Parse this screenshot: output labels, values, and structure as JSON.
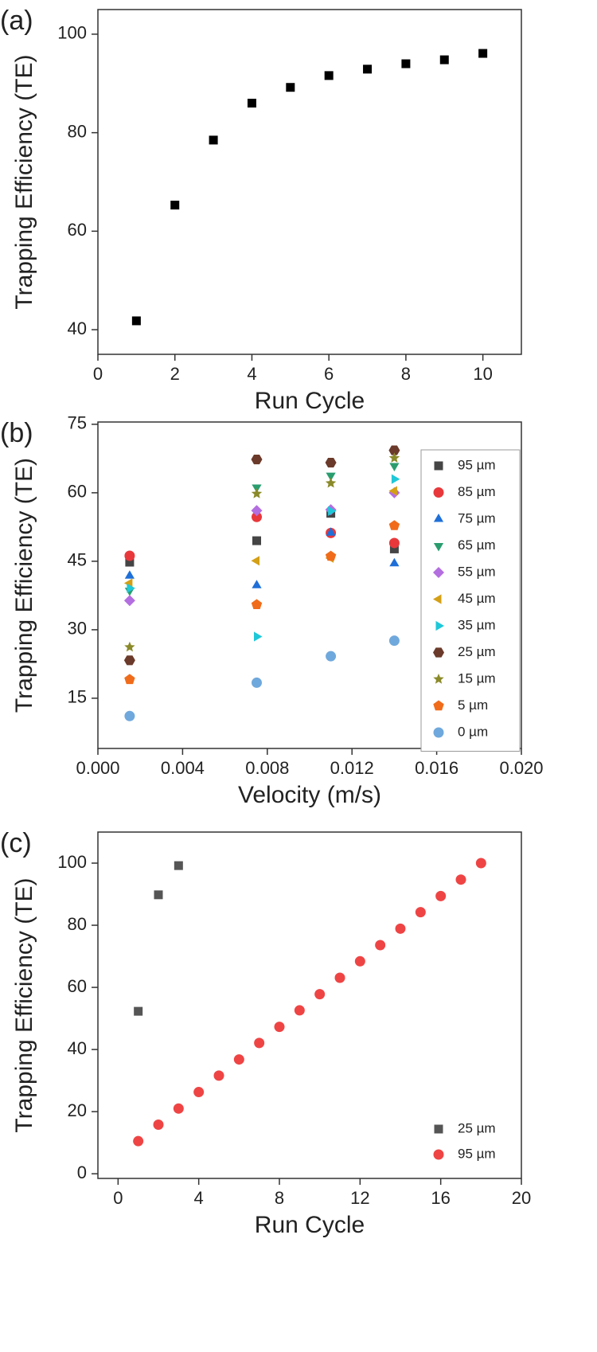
{
  "chart_data": [
    {
      "type": "scatter",
      "panel_label": "(a)",
      "x_label": "Run Cycle",
      "y_label": "Trapping Efficiency (TE)",
      "x": [
        1,
        2,
        3,
        4,
        5,
        6,
        7,
        8,
        9,
        10
      ],
      "values": [
        41.8,
        65.3,
        78.5,
        86,
        89.2,
        91.6,
        92.9,
        94,
        94.8,
        96.1
      ],
      "color": "#000000",
      "marker": "square",
      "xlim": [
        0,
        11
      ],
      "xticks": [
        0,
        2,
        4,
        6,
        8,
        10
      ],
      "ylim": [
        35,
        105
      ],
      "yticks": [
        40,
        60,
        80,
        100
      ]
    },
    {
      "type": "scatter",
      "panel_label": "(b)",
      "x_label": "Velocity (m/s)",
      "y_label": "Trapping Efficiency (TE)",
      "x": [
        0.0015,
        0.0075,
        0.011,
        0.014
      ],
      "series": [
        {
          "name": "95 µm",
          "color": "#454545",
          "marker": "square",
          "values": [
            44.8,
            49.5,
            55.5,
            47.7
          ]
        },
        {
          "name": "85 µm",
          "color": "#e8383b",
          "marker": "circle",
          "values": [
            46.2,
            54.7,
            51.2,
            49
          ]
        },
        {
          "name": "75 µm",
          "color": "#1f6fd8",
          "marker": "triangle-up",
          "values": [
            41.8,
            39.7,
            51.2,
            44.5
          ]
        },
        {
          "name": "65 µm",
          "color": "#2a9d6f",
          "marker": "triangle-down",
          "values": [
            38.6,
            61.2,
            63.8,
            65.9
          ]
        },
        {
          "name": "55 µm",
          "color": "#b36ee0",
          "marker": "diamond",
          "values": [
            36.4,
            56.1,
            56.3,
            60
          ]
        },
        {
          "name": "45 µm",
          "color": "#d4a017",
          "marker": "triangle-left",
          "values": [
            40.2,
            45.1,
            45.7,
            60.4
          ]
        },
        {
          "name": "35 µm",
          "color": "#1ec8d8",
          "marker": "triangle-right",
          "values": [
            39.1,
            28.5,
            56,
            63
          ]
        },
        {
          "name": "25 µm",
          "color": "#6b3a2a",
          "marker": "hexagon",
          "values": [
            23.3,
            67.3,
            66.6,
            69.3
          ]
        },
        {
          "name": "15 µm",
          "color": "#8a8a2a",
          "marker": "star",
          "values": [
            26.2,
            59.8,
            62.1,
            67.6
          ]
        },
        {
          "name": "5  µm",
          "color": "#f06c1a",
          "marker": "pentagon",
          "values": [
            19.1,
            35.5,
            46.1,
            52.8
          ]
        },
        {
          "name": "0  µm",
          "color": "#6fa8dc",
          "marker": "circle",
          "values": [
            11.1,
            18.4,
            24.2,
            27.6
          ]
        }
      ],
      "legend": "right",
      "legend_frame": true,
      "xlim": [
        0,
        0.02
      ],
      "xticks": [
        {
          "value": 0,
          "label": "0.000"
        },
        {
          "value": 0.004,
          "label": "0.004"
        },
        {
          "value": 0.008,
          "label": "0.008"
        },
        {
          "value": 0.012,
          "label": "0.012"
        },
        {
          "value": 0.016,
          "label": "0.016"
        },
        {
          "value": 0.02,
          "label": "0.020"
        }
      ],
      "ylim": [
        4,
        75.5
      ],
      "yticks": [
        15,
        30,
        45,
        60,
        75
      ]
    },
    {
      "type": "scatter",
      "panel_label": "(c)",
      "x_label": "Run Cycle",
      "y_label": "Trapping Efficiency (TE)",
      "series": [
        {
          "name": "25 µm",
          "color": "#555555",
          "marker": "square",
          "x": [
            1,
            2,
            3
          ],
          "values": [
            52.3,
            89.8,
            99.2
          ]
        },
        {
          "name": "95 µm",
          "color": "#ef4444",
          "marker": "circle",
          "x": [
            1,
            2,
            3,
            4,
            5,
            6,
            7,
            8,
            9,
            10,
            11,
            12,
            13,
            14,
            15,
            16,
            17,
            18
          ],
          "values": [
            10.5,
            15.8,
            21,
            26.3,
            31.6,
            36.8,
            42.1,
            47.3,
            52.6,
            57.8,
            63.1,
            68.4,
            73.6,
            78.9,
            84.2,
            89.4,
            94.7,
            100
          ]
        }
      ],
      "legend": "lower right",
      "legend_frame": false,
      "xlim": [
        -1,
        20
      ],
      "xticks": [
        0,
        4,
        8,
        12,
        16,
        20
      ],
      "ylim": [
        -1.5,
        110
      ],
      "yticks": [
        0,
        20,
        40,
        60,
        80,
        100
      ]
    }
  ]
}
